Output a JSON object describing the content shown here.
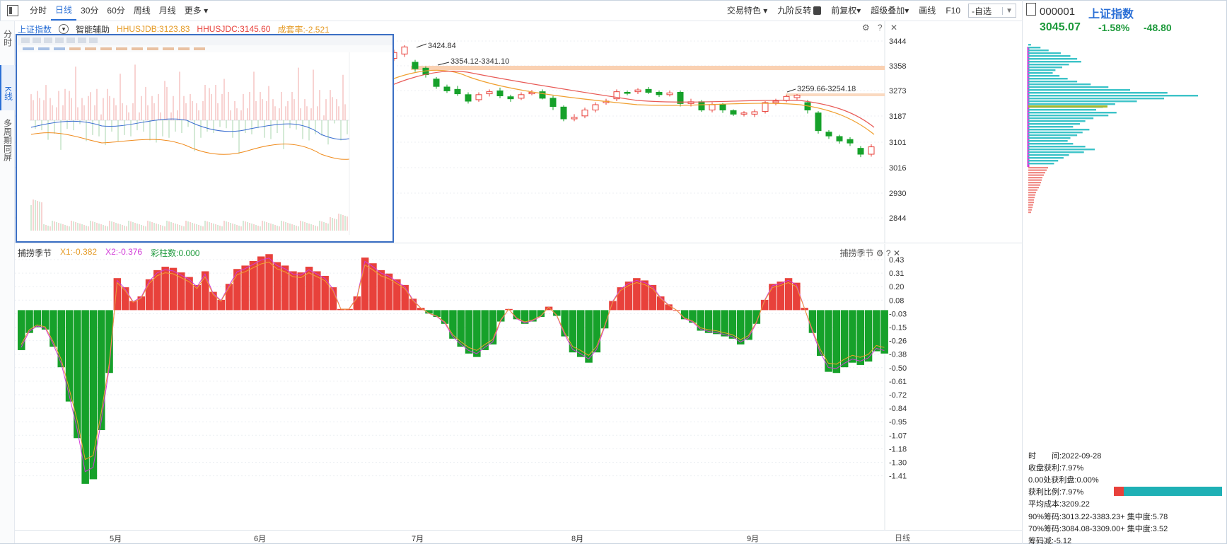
{
  "toolbar": {
    "periods": [
      "分时",
      "日线",
      "30分",
      "60分",
      "周线",
      "月线",
      "更多 ▾"
    ],
    "active_period": "日线",
    "right_items": [
      "交易特色 ▾",
      "九阶反转",
      "前复权▾",
      "超级叠加▾",
      "画线",
      "F10"
    ],
    "self_select": "自选"
  },
  "side_tabs": [
    "分时",
    "K线",
    "多周期同屏"
  ],
  "kline": {
    "legend_title": "上证指数",
    "legend_assist": "智能辅助",
    "hhusjdb": "HHUSJDB:3123.83",
    "hhusjdc": "HHUSJDC:3145.60",
    "fan_rate": "成套率:-2.521",
    "tools": "⚙ ? ✕",
    "annotations": [
      "3424.84",
      "3354.12-3341.10",
      "3259.66-3254.18"
    ],
    "y_labels": [
      "3444",
      "3358",
      "3273",
      "3187",
      "3101",
      "3016",
      "2930",
      "2844"
    ]
  },
  "oscillator": {
    "name": "捕捞季节",
    "x1": "X1:-0.382",
    "x2": "X2:-0.376",
    "bars": "彩柱数:0.000",
    "tools_label": "捕捞季节",
    "y_labels": [
      "0.43",
      "0.31",
      "0.20",
      "0.08",
      "-0.03",
      "-0.15",
      "-0.26",
      "-0.38",
      "-0.50",
      "-0.61",
      "-0.72",
      "-0.84",
      "-0.95",
      "-1.07",
      "-1.18",
      "-1.30",
      "-1.41"
    ]
  },
  "xaxis": {
    "months": [
      "5月",
      "6月",
      "7月",
      "8月",
      "9月"
    ],
    "period_label": "日线"
  },
  "quote": {
    "code": "000001",
    "name": "上证指数",
    "price": "3045.07",
    "pct": "-1.58%",
    "change": "-48.80"
  },
  "chip_stats": {
    "time": "时　　间:2022-09-28",
    "profit": "收盘获利:7.97%",
    "zero_profit": "0.00处获利盘:0.00%",
    "profit_ratio": "获利比例:7.97%",
    "avg_cost": "平均成本:3209.22",
    "chip90": "90%筹码:3013.22-3383.23+ 集中度:5.78",
    "chip70": "70%筹码:3084.08-3309.00+ 集中度:3.52",
    "chip_drop": "筹码减:-5.12"
  },
  "colors": {
    "up": "#e8413b",
    "down": "#16a12a",
    "accent": "#2a6fd6",
    "chip_up": "#3cc3c8",
    "chip_down": "#f08a85"
  }
}
